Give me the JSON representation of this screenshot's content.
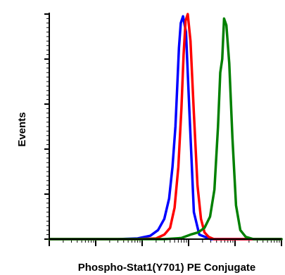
{
  "chart_data": {
    "type": "line",
    "title": "",
    "xlabel": "Phospho-Stat1(Y701) PE Conjugate",
    "ylabel": "Events",
    "x_scale": "log",
    "xlim": [
      1,
      100000
    ],
    "ylim": [
      0,
      100
    ],
    "grid": false,
    "legend": "none",
    "series": [
      {
        "color": "#0000ff",
        "x": [
          1,
          30,
          80,
          150,
          220,
          300,
          380,
          450,
          520,
          570,
          620,
          680,
          760,
          880,
          1050,
          1300,
          1700,
          3000,
          100000
        ],
        "y": [
          0,
          0,
          0.3,
          1.5,
          4,
          9,
          18,
          32,
          50,
          68,
          85,
          96,
          99,
          92,
          55,
          12,
          2,
          0,
          0
        ]
      },
      {
        "color": "#ff0000",
        "x": [
          1,
          80,
          200,
          300,
          400,
          500,
          600,
          700,
          780,
          860,
          960,
          1100,
          1300,
          1550,
          1850,
          2200,
          2700,
          3500,
          100000
        ],
        "y": [
          0,
          0,
          0.3,
          2,
          5,
          14,
          32,
          58,
          82,
          97,
          100,
          88,
          56,
          24,
          9,
          3,
          1,
          0,
          0
        ]
      },
      {
        "color": "#008000",
        "x": [
          1,
          300,
          700,
          1100,
          1600,
          2200,
          2900,
          3600,
          4300,
          4800,
          5300,
          5800,
          6500,
          7500,
          8800,
          10500,
          13000,
          17000,
          25000,
          100000
        ],
        "y": [
          0,
          0,
          0.5,
          2,
          3,
          5,
          10,
          22,
          50,
          74,
          80,
          98,
          95,
          78,
          45,
          15,
          4,
          1,
          0,
          0
        ]
      }
    ]
  }
}
